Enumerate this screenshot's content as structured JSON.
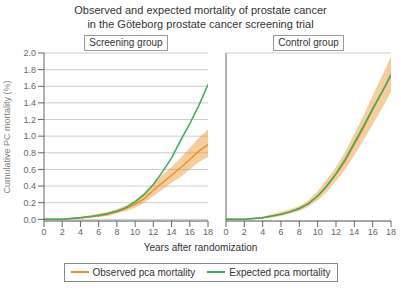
{
  "title": "Observed and expected mortality of prostate cancer",
  "subtitle": "in the Göteborg prostate cancer screening trial",
  "xlabel": "Years after randomization",
  "legend": "bottom",
  "chart_data": [
    {
      "type": "line",
      "title": "Screening group",
      "ylabel": "Cumulative PC mortality (%)",
      "x": [
        0,
        1,
        2,
        3,
        4,
        5,
        6,
        7,
        8,
        9,
        10,
        11,
        12,
        13,
        14,
        15,
        16,
        17,
        18
      ],
      "xlim": [
        0,
        18
      ],
      "xticks": [
        0,
        2,
        4,
        6,
        8,
        10,
        12,
        14,
        16,
        18
      ],
      "ylim": [
        -0.02,
        2.0
      ],
      "yticks": [
        {
          "value": 0.0,
          "label": "0.0"
        },
        0.2,
        0.4,
        0.6,
        0.8,
        {
          "value": 1.0,
          "label": "1.0"
        },
        1.2,
        1.4,
        1.6,
        1.8,
        {
          "value": 2.0,
          "label": "2.0"
        }
      ],
      "grid": true,
      "series": [
        {
          "name": "Observed pca mortality",
          "color": "#E8922A",
          "values": [
            0.0,
            0.0,
            0.0,
            0.01,
            0.02,
            0.03,
            0.04,
            0.06,
            0.09,
            0.13,
            0.18,
            0.25,
            0.35,
            0.44,
            0.53,
            0.62,
            0.72,
            0.82,
            0.9
          ],
          "lower": [
            0.0,
            0.0,
            0.0,
            0.0,
            0.01,
            0.02,
            0.03,
            0.04,
            0.07,
            0.1,
            0.14,
            0.2,
            0.28,
            0.36,
            0.44,
            0.51,
            0.6,
            0.69,
            0.75
          ],
          "upper": [
            0.0,
            0.0,
            0.0,
            0.02,
            0.03,
            0.05,
            0.07,
            0.09,
            0.12,
            0.17,
            0.23,
            0.32,
            0.43,
            0.54,
            0.63,
            0.74,
            0.86,
            0.98,
            1.08
          ]
        },
        {
          "name": "Expected pca mortality",
          "color": "#3DAA5C",
          "values": [
            0.0,
            0.0,
            0.0,
            0.01,
            0.02,
            0.03,
            0.05,
            0.07,
            0.1,
            0.14,
            0.21,
            0.3,
            0.42,
            0.57,
            0.74,
            0.95,
            1.15,
            1.37,
            1.62
          ]
        }
      ]
    },
    {
      "type": "line",
      "title": "Control group",
      "tick_labels": "x",
      "x": [
        0,
        1,
        2,
        3,
        4,
        5,
        6,
        7,
        8,
        9,
        10,
        11,
        12,
        13,
        14,
        15,
        16,
        17,
        18
      ],
      "xlim": [
        0,
        18
      ],
      "xticks": [
        0,
        2,
        4,
        6,
        8,
        10,
        12,
        14,
        16,
        18
      ],
      "ylim": [
        -0.02,
        2.0
      ],
      "yticks": [
        {
          "value": 0.0,
          "label": "0.0"
        },
        0.2,
        0.4,
        0.6,
        0.8,
        {
          "value": 1.0,
          "label": "1.0"
        },
        1.2,
        1.4,
        1.6,
        1.8,
        {
          "value": 2.0,
          "label": "2.0"
        }
      ],
      "grid": true,
      "series": [
        {
          "name": "Observed pca mortality",
          "color": "#E8922A",
          "values": [
            0.0,
            0.0,
            0.0,
            0.01,
            0.02,
            0.04,
            0.06,
            0.09,
            0.13,
            0.19,
            0.28,
            0.4,
            0.54,
            0.7,
            0.9,
            1.1,
            1.32,
            1.52,
            1.75
          ],
          "lower": [
            0.0,
            0.0,
            0.0,
            0.0,
            0.01,
            0.02,
            0.04,
            0.07,
            0.1,
            0.15,
            0.23,
            0.33,
            0.46,
            0.6,
            0.77,
            0.95,
            1.14,
            1.33,
            1.53
          ],
          "upper": [
            0.0,
            0.0,
            0.0,
            0.02,
            0.03,
            0.06,
            0.09,
            0.12,
            0.16,
            0.23,
            0.34,
            0.48,
            0.63,
            0.81,
            1.03,
            1.25,
            1.49,
            1.72,
            1.96
          ]
        },
        {
          "name": "Expected pca mortality",
          "color": "#3DAA5C",
          "values": [
            0.0,
            0.0,
            0.0,
            0.01,
            0.02,
            0.04,
            0.06,
            0.09,
            0.13,
            0.19,
            0.28,
            0.4,
            0.55,
            0.72,
            0.92,
            1.12,
            1.33,
            1.53,
            1.73
          ]
        }
      ]
    }
  ]
}
